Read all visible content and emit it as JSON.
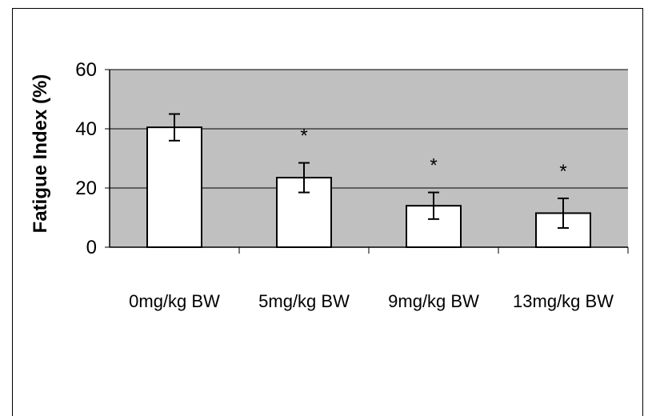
{
  "chart_data": {
    "type": "bar",
    "title": "",
    "xlabel": "",
    "ylabel": "Fatigue Index (%)",
    "ylim": [
      0,
      60
    ],
    "yticks": [
      0,
      20,
      40,
      60
    ],
    "grid": true,
    "legend": "none",
    "categories": [
      "0mg/kg BW",
      "5mg/kg BW",
      "9mg/kg BW",
      "13mg/kg BW"
    ],
    "values": [
      40.5,
      23.5,
      14,
      11.5
    ],
    "error": [
      4.5,
      5,
      4.5,
      5
    ],
    "annotations": [
      "",
      "*",
      "*",
      "*"
    ],
    "colors": {
      "plot_background": "#c0c0c0",
      "bar_fill": "#ffffff",
      "bar_stroke": "#000000"
    }
  }
}
